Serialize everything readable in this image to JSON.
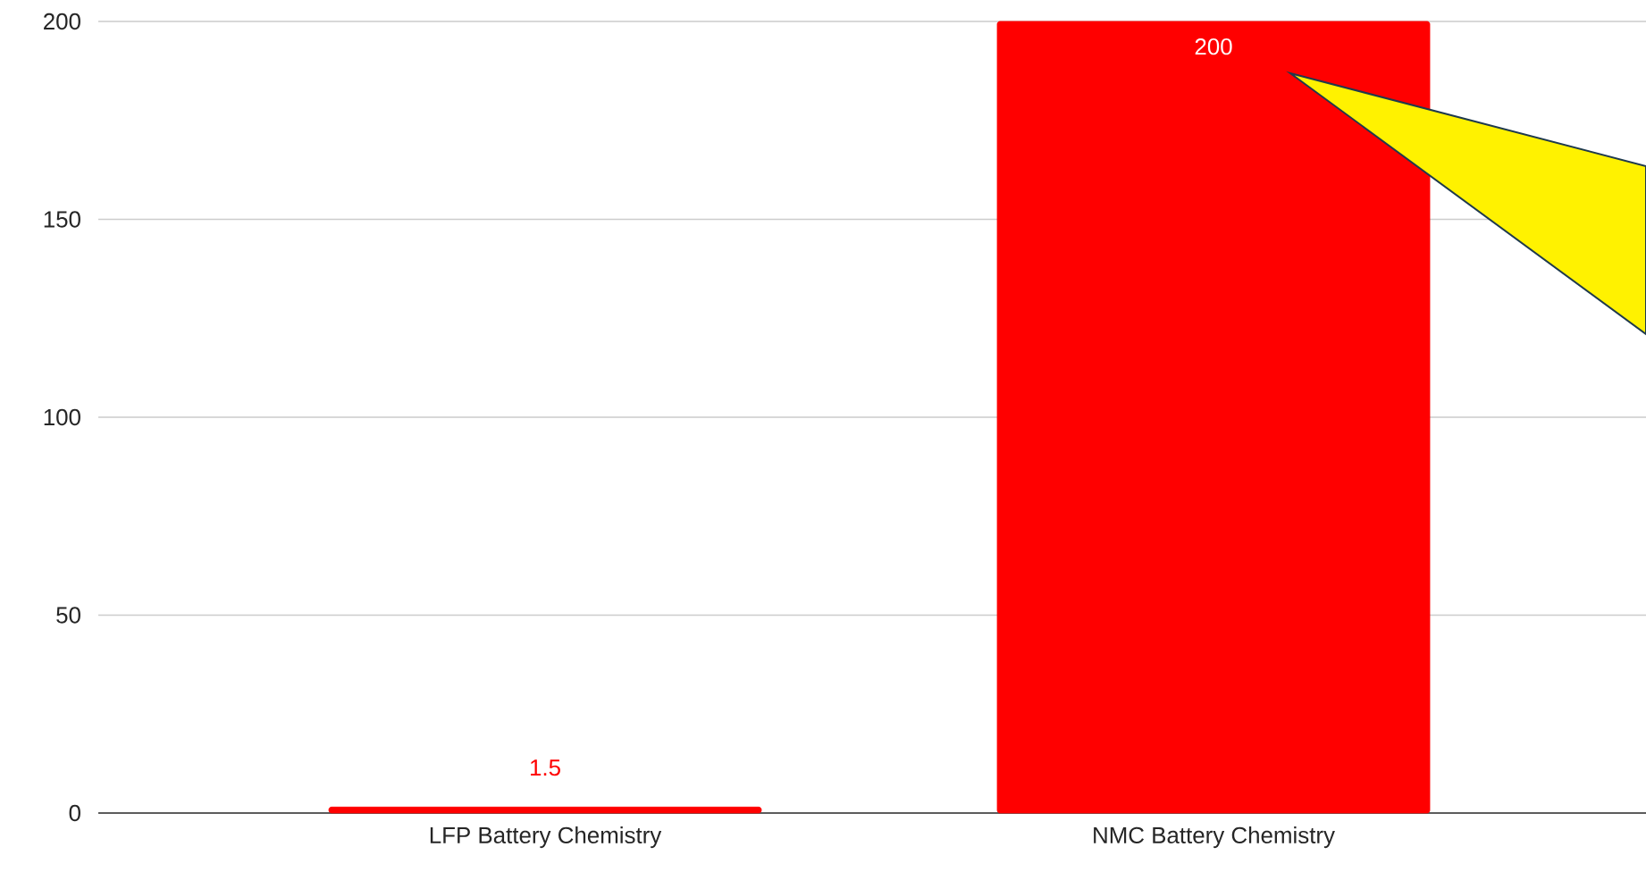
{
  "chart_data": {
    "type": "bar",
    "categories": [
      "LFP Battery Chemistry",
      "NMC Battery Chemistry"
    ],
    "values": [
      1.5,
      200
    ],
    "color": "#ff0000",
    "ylim": [
      0,
      200
    ],
    "yticks": [
      0,
      50,
      100,
      150,
      200
    ],
    "grid": "y",
    "data_labels": true
  }
}
